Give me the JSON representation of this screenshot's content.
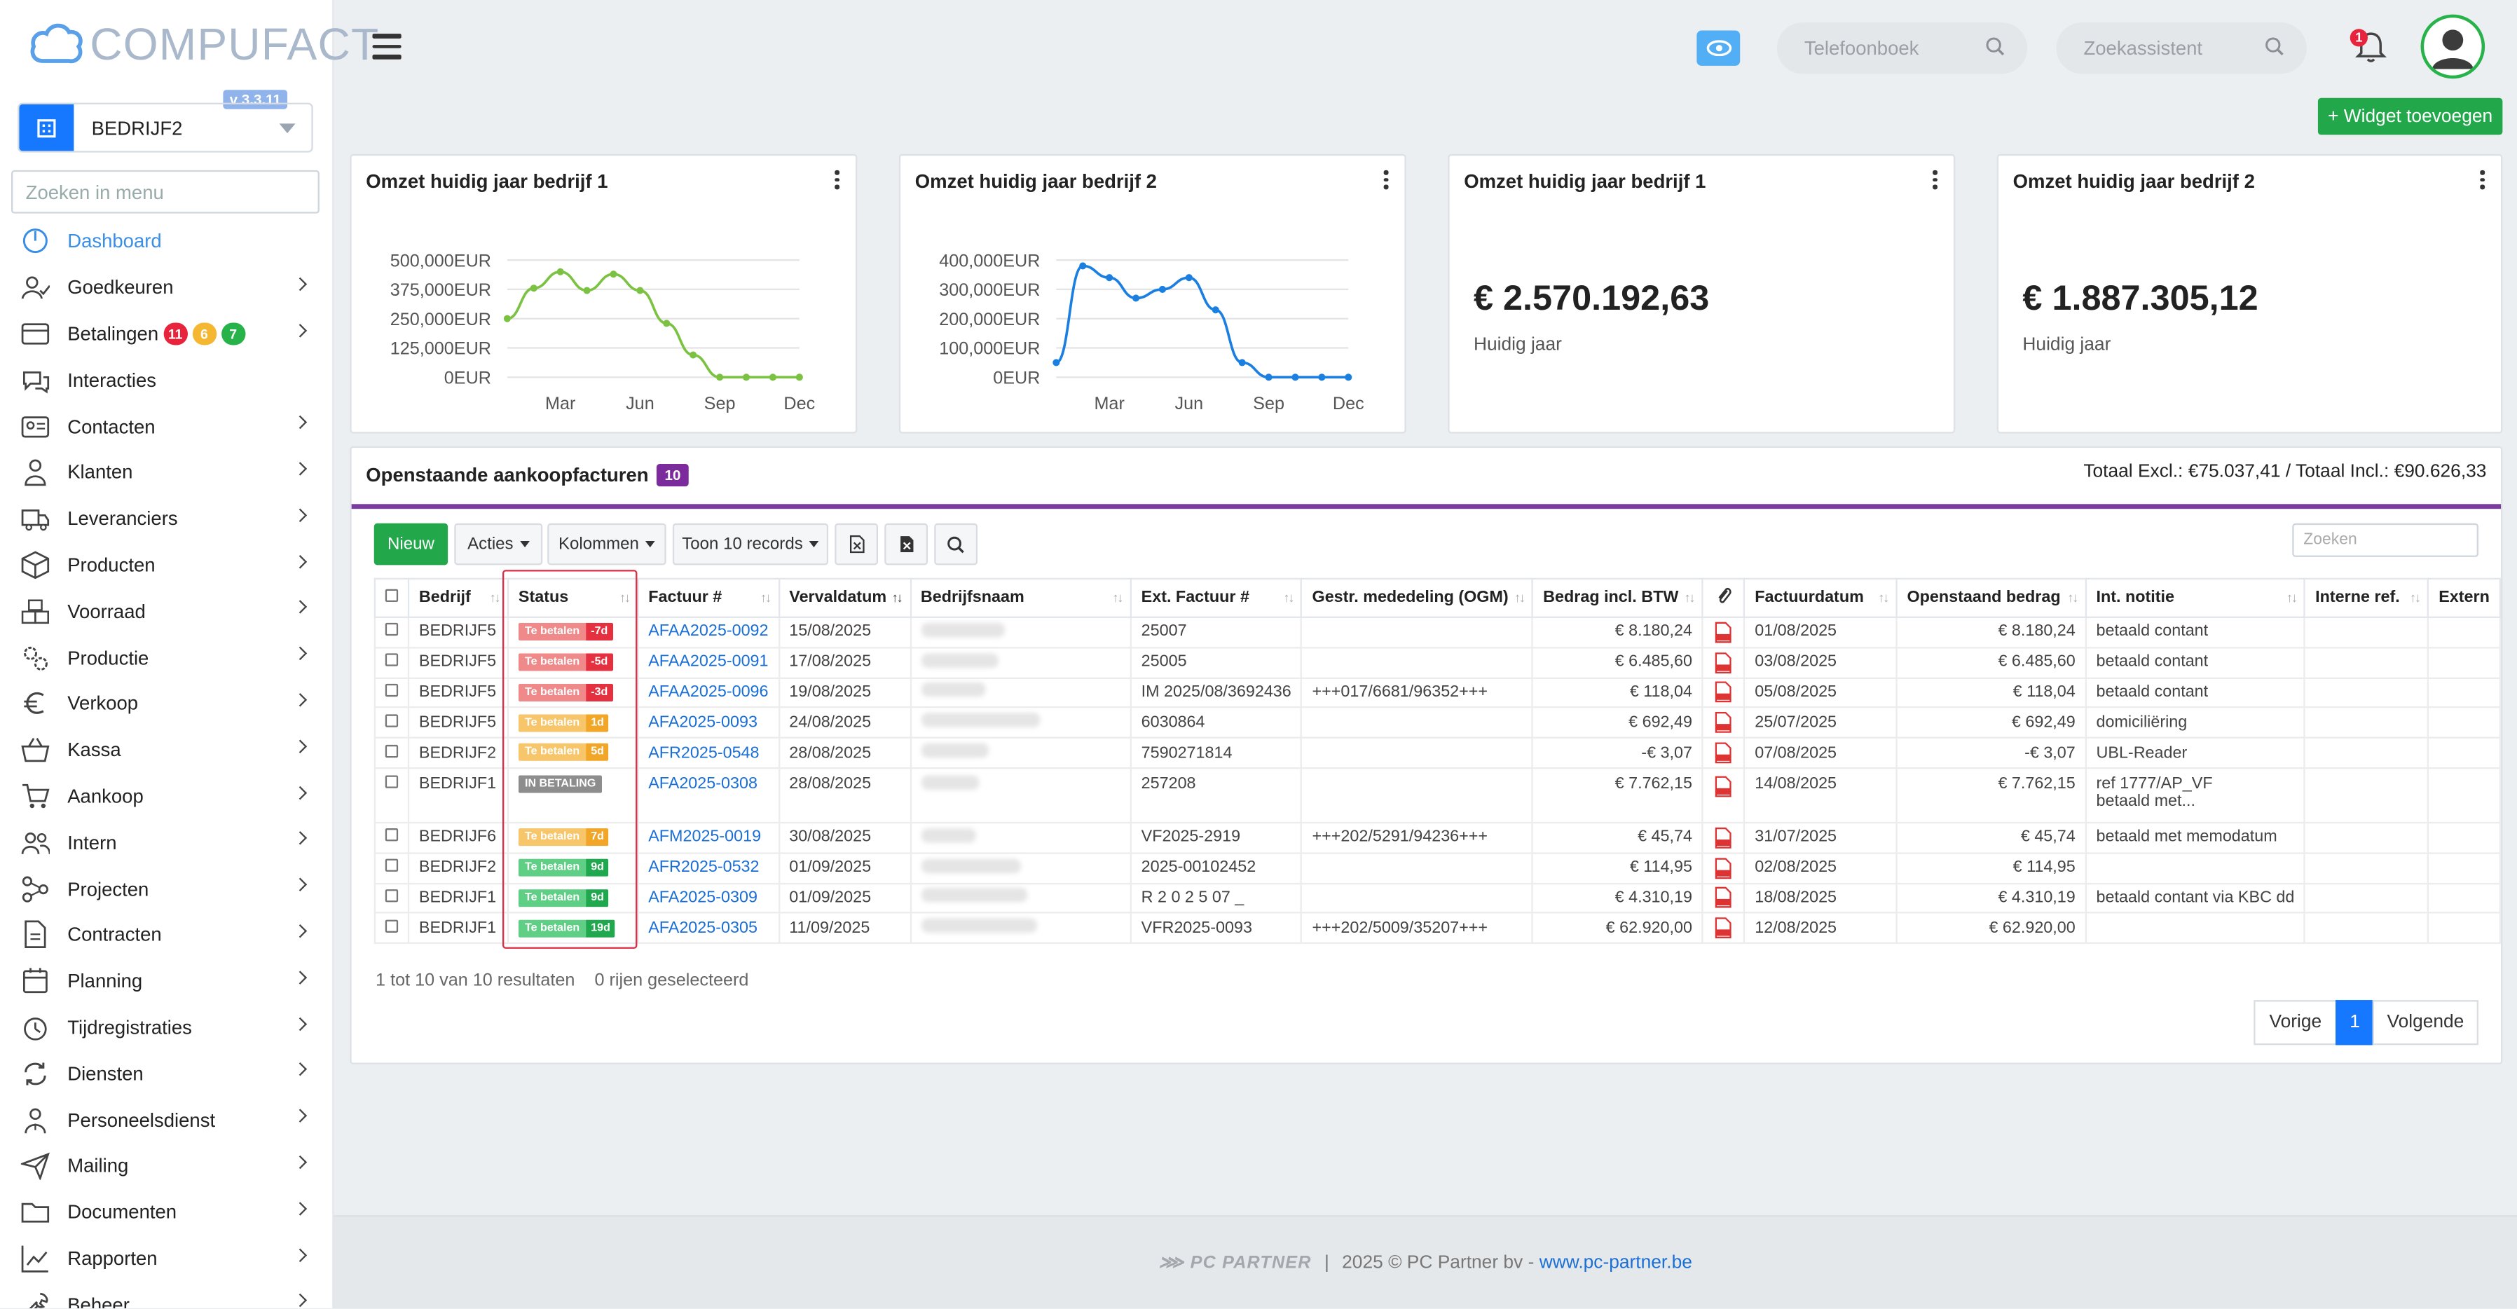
{
  "brand": {
    "logo_text": "COMPUFACT",
    "version": "v 3.3.11",
    "company": "BEDRIJF2"
  },
  "sidebar": {
    "search_placeholder": "Zoeken in menu",
    "items": [
      {
        "label": "Dashboard",
        "icon": "dashboard-icon",
        "active": true,
        "chevron": false
      },
      {
        "label": "Goedkeuren",
        "icon": "user-check-icon",
        "chevron": true
      },
      {
        "label": "Betalingen",
        "icon": "credit-card-icon",
        "chevron": true,
        "badges": [
          {
            "text": "11",
            "color": "#e8243c"
          },
          {
            "text": "6",
            "color": "#f5b731"
          },
          {
            "text": "7",
            "color": "#27b24a"
          }
        ]
      },
      {
        "label": "Interacties",
        "icon": "chat-icon",
        "chevron": false
      },
      {
        "label": "Contacten",
        "icon": "contact-card-icon",
        "chevron": true
      },
      {
        "label": "Klanten",
        "icon": "customer-icon",
        "chevron": true
      },
      {
        "label": "Leveranciers",
        "icon": "truck-icon",
        "chevron": true
      },
      {
        "label": "Producten",
        "icon": "box-icon",
        "chevron": true
      },
      {
        "label": "Voorraad",
        "icon": "boxes-icon",
        "chevron": true
      },
      {
        "label": "Productie",
        "icon": "gears-icon",
        "chevron": true
      },
      {
        "label": "Verkoop",
        "icon": "euro-icon",
        "chevron": true
      },
      {
        "label": "Kassa",
        "icon": "basket-icon",
        "chevron": true
      },
      {
        "label": "Aankoop",
        "icon": "cart-icon",
        "chevron": true
      },
      {
        "label": "Intern",
        "icon": "users-icon",
        "chevron": true
      },
      {
        "label": "Projecten",
        "icon": "project-icon",
        "chevron": true
      },
      {
        "label": "Contracten",
        "icon": "contract-icon",
        "chevron": true
      },
      {
        "label": "Planning",
        "icon": "calendar-icon",
        "chevron": true
      },
      {
        "label": "Tijdregistraties",
        "icon": "timer-icon",
        "chevron": true
      },
      {
        "label": "Diensten",
        "icon": "refresh-icon",
        "chevron": true
      },
      {
        "label": "Personeelsdienst",
        "icon": "staff-icon",
        "chevron": true
      },
      {
        "label": "Mailing",
        "icon": "send-icon",
        "chevron": true
      },
      {
        "label": "Documenten",
        "icon": "folder-icon",
        "chevron": true
      },
      {
        "label": "Rapporten",
        "icon": "chart-line-icon",
        "chevron": true
      },
      {
        "label": "Beheer",
        "icon": "wrench-icon",
        "chevron": true
      }
    ]
  },
  "topbar": {
    "phonebook_placeholder": "Telefoonboek",
    "assistant_placeholder": "Zoekassistent",
    "bell_count": "1",
    "widget_button": "+ Widget toevoegen"
  },
  "widgets": [
    {
      "title": "Omzet huidig jaar bedrijf 1"
    },
    {
      "title": "Omzet huidig jaar bedrijf 2"
    },
    {
      "title": "Omzet huidig jaar bedrijf 1",
      "value": "€ 2.570.192,63",
      "sub": "Huidig jaar"
    },
    {
      "title": "Omzet huidig jaar bedrijf 2",
      "value": "€ 1.887.305,12",
      "sub": "Huidig jaar"
    }
  ],
  "chart_data": [
    {
      "type": "line",
      "title": "Omzet huidig jaar bedrijf 1",
      "x_ticks": [
        "Mar",
        "Jun",
        "Sep",
        "Dec"
      ],
      "y_ticks": [
        "500,000EUR",
        "375,000EUR",
        "250,000EUR",
        "125,000EUR",
        "0EUR"
      ],
      "ylim": [
        0,
        500000
      ],
      "color": "#7cc242",
      "values": [
        250000,
        380000,
        450000,
        370000,
        440000,
        370000,
        230000,
        95000,
        0,
        0,
        0,
        0
      ]
    },
    {
      "type": "line",
      "title": "Omzet huidig jaar bedrijf 2",
      "x_ticks": [
        "Mar",
        "Jun",
        "Sep",
        "Dec"
      ],
      "y_ticks": [
        "400,000EUR",
        "300,000EUR",
        "200,000EUR",
        "100,000EUR",
        "0EUR"
      ],
      "ylim": [
        0,
        400000
      ],
      "color": "#1a7fe0",
      "values": [
        50000,
        380000,
        340000,
        270000,
        300000,
        340000,
        230000,
        50000,
        0,
        0,
        0,
        0
      ]
    }
  ],
  "invoices": {
    "title": "Openstaande aankoopfacturen",
    "count": "10",
    "totals": "Totaal Excl.: €75.037,41 / Totaal Incl.: €90.626,33",
    "toolbar": {
      "new": "Nieuw",
      "actions": "Acties",
      "columns": "Kolommen",
      "show": "Toon 10 records",
      "search_placeholder": "Zoeken"
    },
    "columns": [
      "Bedrijf",
      "Status",
      "Factuur #",
      "Vervaldatum",
      "Bedrijfsnaam",
      "Ext. Factuur #",
      "Gestr. mededeling (OGM)",
      "Bedrag incl. BTW",
      "",
      "Factuurdatum",
      "Openstaand bedrag",
      "Int. notitie",
      "Interne ref.",
      "Extern"
    ],
    "rows": [
      {
        "bedrijf": "BEDRIJF5",
        "status": "Te betalen",
        "days": "-7d",
        "tone": "red",
        "factuur": "AFAA2025-0092",
        "verval": "15/08/2025",
        "ext": "25007",
        "ogm": "",
        "bedrag": "€ 8.180,24",
        "datum": "01/08/2025",
        "open": "€ 8.180,24",
        "notitie": "betaald contant"
      },
      {
        "bedrijf": "BEDRIJF5",
        "status": "Te betalen",
        "days": "-5d",
        "tone": "red",
        "factuur": "AFAA2025-0091",
        "verval": "17/08/2025",
        "ext": "25005",
        "ogm": "",
        "bedrag": "€ 6.485,60",
        "datum": "03/08/2025",
        "open": "€ 6.485,60",
        "notitie": "betaald contant"
      },
      {
        "bedrijf": "BEDRIJF5",
        "status": "Te betalen",
        "days": "-3d",
        "tone": "red",
        "factuur": "AFAA2025-0096",
        "verval": "19/08/2025",
        "ext": "IM 2025/08/3692436",
        "ogm": "+++017/6681/96352+++",
        "bedrag": "€ 118,04",
        "datum": "05/08/2025",
        "open": "€ 118,04",
        "notitie": "betaald contant"
      },
      {
        "bedrijf": "BEDRIJF5",
        "status": "Te betalen",
        "days": "1d",
        "tone": "orange",
        "factuur": "AFA2025-0093",
        "verval": "24/08/2025",
        "ext": "6030864",
        "ogm": "",
        "bedrag": "€ 692,49",
        "datum": "25/07/2025",
        "open": "€ 692,49",
        "notitie": "domiciliëring"
      },
      {
        "bedrijf": "BEDRIJF2",
        "status": "Te betalen",
        "days": "5d",
        "tone": "orange",
        "factuur": "AFR2025-0548",
        "verval": "28/08/2025",
        "ext": "7590271814",
        "ogm": "",
        "bedrag": "-€ 3,07",
        "datum": "07/08/2025",
        "open": "-€ 3,07",
        "notitie": "UBL-Reader"
      },
      {
        "bedrijf": "BEDRIJF1",
        "status": "IN BETALING",
        "days": "",
        "tone": "gray",
        "factuur": "AFA2025-0308",
        "verval": "28/08/2025",
        "ext": "257208",
        "ogm": "",
        "bedrag": "€ 7.762,15",
        "datum": "14/08/2025",
        "open": "€ 7.762,15",
        "notitie": "ref 1777/AP_VF",
        "notitie2": "betaald met..."
      },
      {
        "bedrijf": "BEDRIJF6",
        "status": "Te betalen",
        "days": "7d",
        "tone": "orange",
        "factuur": "AFM2025-0019",
        "verval": "30/08/2025",
        "ext": "VF2025-2919",
        "ogm": "+++202/5291/94236+++",
        "bedrag": "€ 45,74",
        "datum": "31/07/2025",
        "open": "€ 45,74",
        "notitie": "betaald met memodatum"
      },
      {
        "bedrijf": "BEDRIJF2",
        "status": "Te betalen",
        "days": "9d",
        "tone": "green",
        "factuur": "AFR2025-0532",
        "verval": "01/09/2025",
        "ext": "2025-00102452",
        "ogm": "",
        "bedrag": "€ 114,95",
        "datum": "02/08/2025",
        "open": "€ 114,95",
        "notitie": ""
      },
      {
        "bedrijf": "BEDRIJF1",
        "status": "Te betalen",
        "days": "9d",
        "tone": "green",
        "factuur": "AFA2025-0309",
        "verval": "01/09/2025",
        "ext": "R 2 0 2 5 07 _",
        "ogm": "",
        "bedrag": "€ 4.310,19",
        "datum": "18/08/2025",
        "open": "€ 4.310,19",
        "notitie": "betaald contant via KBC dd"
      },
      {
        "bedrijf": "BEDRIJF1",
        "status": "Te betalen",
        "days": "19d",
        "tone": "green",
        "factuur": "AFA2025-0305",
        "verval": "11/09/2025",
        "ext": "VFR2025-0093",
        "ogm": "+++202/5009/35207+++",
        "bedrag": "€ 62.920,00",
        "datum": "12/08/2025",
        "open": "€ 62.920,00",
        "notitie": ""
      }
    ],
    "summary": "1 tot 10 van 10 resultaten",
    "selected": "0 rijen geselecteerd",
    "pager": {
      "prev": "Vorige",
      "page": "1",
      "next": "Volgende"
    }
  },
  "footer": {
    "brand": "PC PARTNER",
    "copyright": "2025 © PC Partner bv -",
    "link": "www.pc-partner.be"
  }
}
